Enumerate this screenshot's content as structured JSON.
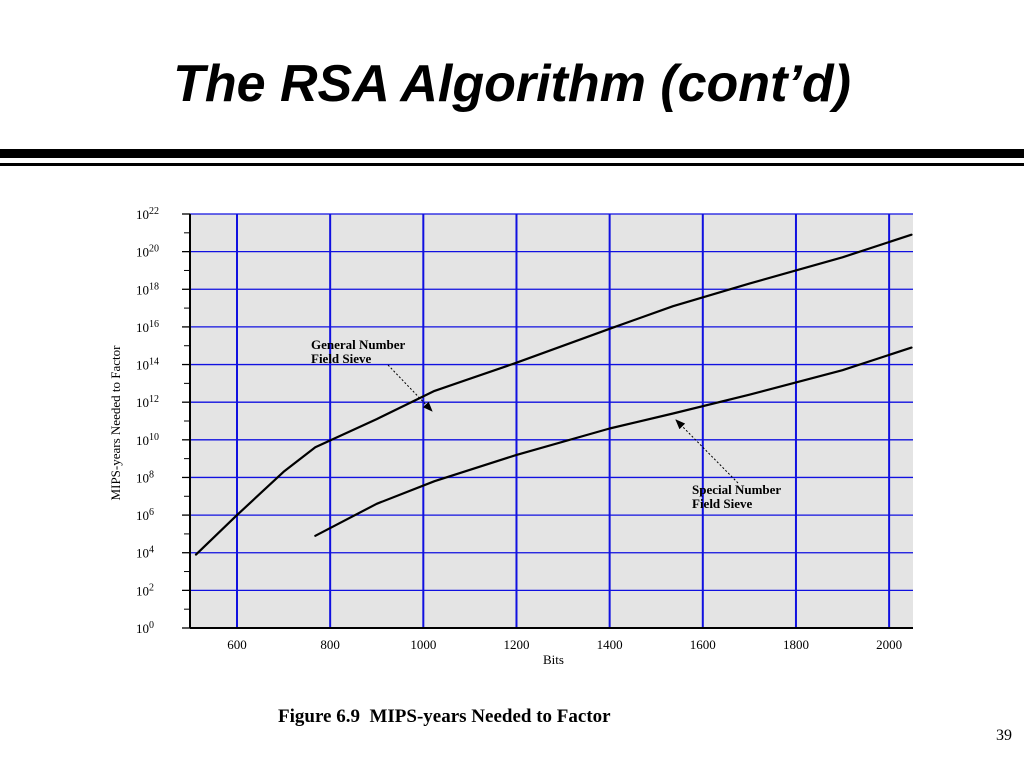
{
  "slide": {
    "title": "The RSA Algorithm (cont’d)",
    "caption": "Figure 6.9  MIPS-years Needed to Factor",
    "page_number": "39"
  },
  "colors": {
    "plot_background": "#e4e4e4",
    "grid_line": "#1010e0",
    "curve": "#000000",
    "rule": "#000000"
  },
  "chart_data": {
    "type": "line",
    "title": "",
    "xlabel": "Bits",
    "ylabel": "MIPS-years Needed to Factor",
    "x_ticks": [
      600,
      800,
      1000,
      1200,
      1400,
      1600,
      1800,
      2000
    ],
    "y_ticks": [
      0,
      2,
      4,
      6,
      8,
      10,
      12,
      14,
      16,
      18,
      20,
      22
    ],
    "y_tick_base": "10",
    "y_scale": "log10",
    "xlim": [
      500,
      2050
    ],
    "ylim": [
      0,
      22
    ],
    "grid": true,
    "series": [
      {
        "name": "General Number Field Sieve",
        "x": [
          512,
          600,
          700,
          768,
          900,
          1024,
          1200,
          1400,
          1536,
          1700,
          1900,
          2048
        ],
        "log10_y": [
          3.9,
          6.0,
          8.3,
          9.6,
          11.1,
          12.6,
          14.1,
          15.9,
          17.1,
          18.3,
          19.7,
          20.9
        ],
        "label_lines": [
          "General Number",
          "Field Sieve"
        ]
      },
      {
        "name": "Special Number Field Sieve",
        "x": [
          768,
          900,
          1024,
          1200,
          1400,
          1536,
          1700,
          1900,
          2048
        ],
        "log10_y": [
          4.9,
          6.6,
          7.8,
          9.2,
          10.6,
          11.4,
          12.4,
          13.7,
          14.9
        ],
        "label_lines": [
          "Special Number",
          "Field Sieve"
        ]
      }
    ]
  }
}
